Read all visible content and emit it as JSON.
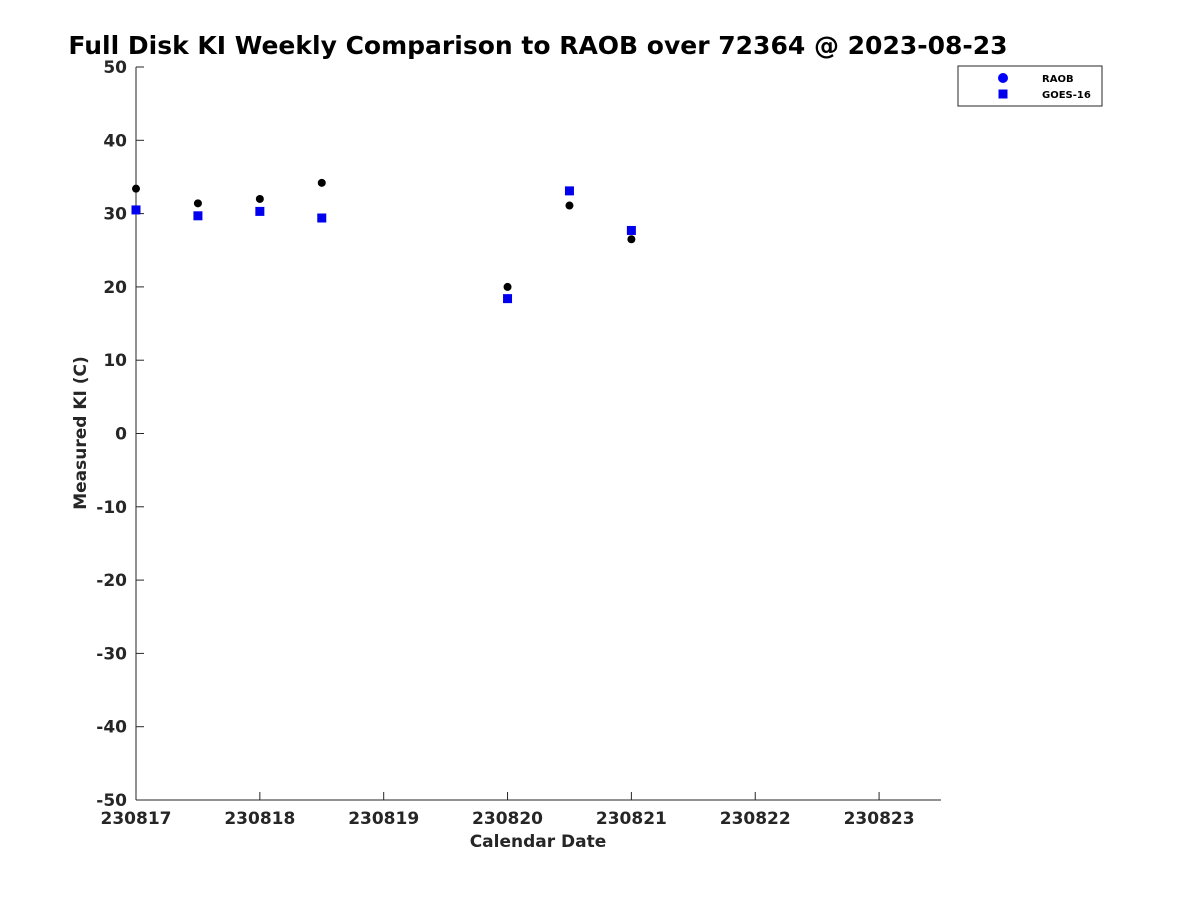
{
  "chart_data": {
    "type": "scatter",
    "title": "Full Disk KI Weekly Comparison to RAOB over 72364 @ 2023-08-23",
    "xlabel": "Calendar Date",
    "ylabel": "Measured KI (C)",
    "xlim": [
      0,
      6.5
    ],
    "ylim": [
      -50,
      50
    ],
    "x_ticks": [
      0,
      1,
      2,
      3,
      4,
      5,
      6
    ],
    "x_tick_labels": [
      "230817",
      "230818",
      "230819",
      "230820",
      "230821",
      "230822",
      "230823"
    ],
    "y_ticks": [
      50,
      40,
      30,
      20,
      10,
      0,
      -10,
      -20,
      -30,
      -40,
      -50
    ],
    "y_tick_labels": [
      "50",
      "40",
      "30",
      "20",
      "10",
      "0",
      "-10",
      "-20",
      "-30",
      "-40",
      "-50"
    ],
    "grid": false,
    "legend_position": "top-right",
    "series": [
      {
        "name": "RAOB",
        "marker": "circle",
        "color": "#000000",
        "legend_color": "#0000ff",
        "points": [
          [
            0,
            33.4
          ],
          [
            0.5,
            31.4
          ],
          [
            1,
            32
          ],
          [
            1.5,
            34.2
          ],
          [
            3,
            20
          ],
          [
            3.5,
            31.1
          ],
          [
            4,
            26.5
          ]
        ]
      },
      {
        "name": "GOES-16",
        "marker": "square",
        "color": "#0000ee",
        "legend_color": "#0000ee",
        "points": [
          [
            0,
            30.5
          ],
          [
            0.5,
            29.7
          ],
          [
            1,
            30.3
          ],
          [
            1.5,
            29.4
          ],
          [
            3,
            18.4
          ],
          [
            3.5,
            33.1
          ],
          [
            4,
            27.7
          ]
        ]
      }
    ]
  }
}
